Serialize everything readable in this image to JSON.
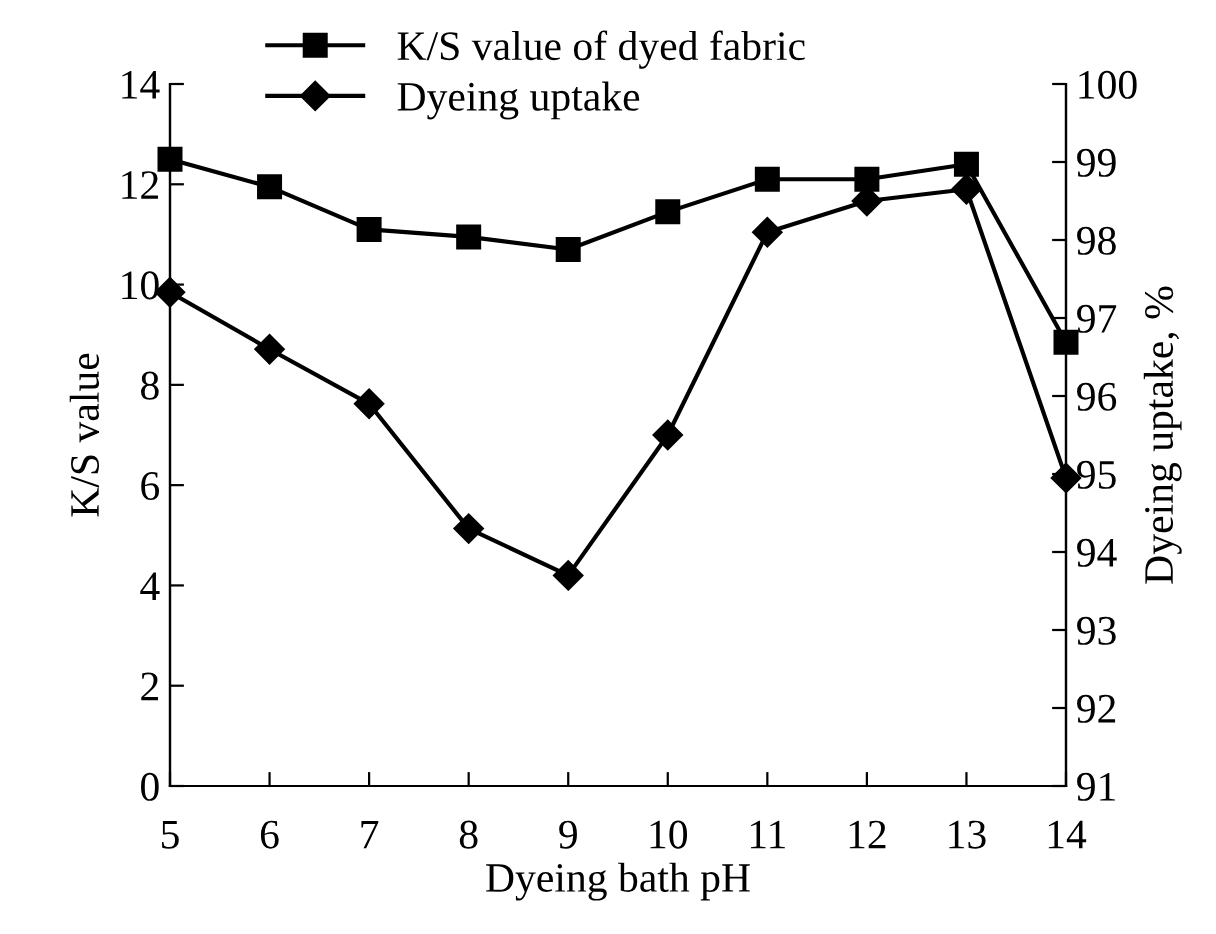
{
  "chart_data": {
    "type": "line",
    "xlabel": "Dyeing bath pH",
    "ylabel": "K/S value",
    "y2label": "Dyeing uptake, %",
    "x": [
      5,
      6,
      7,
      8,
      9,
      10,
      11,
      12,
      13,
      14
    ],
    "series": [
      {
        "name": "K/S value of dyed fabric",
        "color": "#000000",
        "marker": "square",
        "values": [
          12.5,
          11.95,
          11.1,
          10.95,
          10.7,
          11.45,
          12.1,
          12.1,
          12.4,
          8.85
        ]
      },
      {
        "name": "Dyeing uptake",
        "color": "#000000",
        "marker": "diamond",
        "axis": "y2",
        "values": [
          97.33,
          96.6,
          95.9,
          94.3,
          93.7,
          95.5,
          98.1,
          98.5,
          98.65,
          94.95
        ]
      }
    ],
    "xlim": [
      5,
      14
    ],
    "xticks": [
      5,
      6,
      7,
      8,
      9,
      10,
      11,
      12,
      13,
      14
    ],
    "ylim": [
      0,
      14
    ],
    "yticks": [
      0,
      2,
      4,
      6,
      8,
      10,
      12,
      14
    ],
    "y2lim": [
      91,
      100
    ],
    "y2ticks": [
      91,
      92,
      93,
      94,
      95,
      96,
      97,
      98,
      99,
      100
    ],
    "grid": false,
    "legend": "top left",
    "line_style": "solid"
  }
}
